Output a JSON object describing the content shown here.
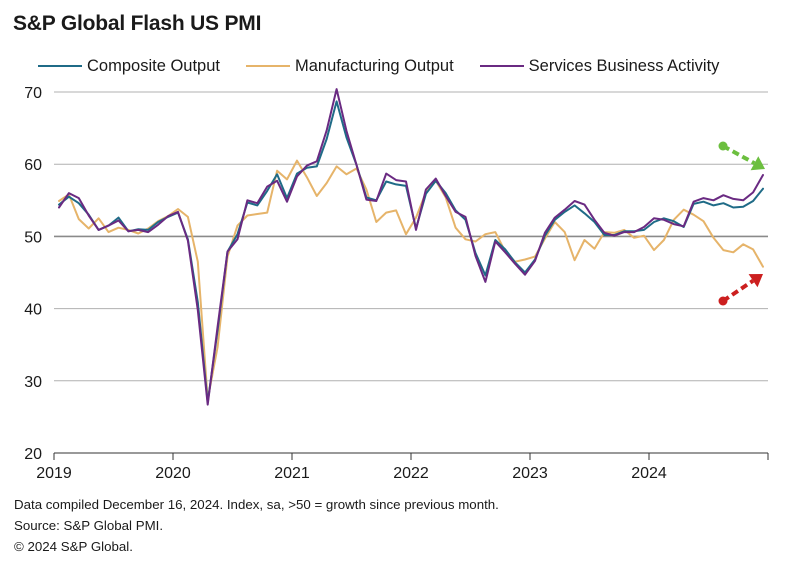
{
  "title": "S&P Global Flash US PMI",
  "footer": {
    "line1": "Data compiled December 16, 2024. Index, sa, >50 = growth since previous month.",
    "line2": "Source: S&P Global PMI.",
    "line3": "© 2024 S&P Global."
  },
  "colors": {
    "composite": "#1f6b87",
    "manufacturing": "#e6b46a",
    "services": "#6a2a82",
    "arrow_up_green": "#6cbf3f",
    "arrow_down_red": "#cc1f1f",
    "grid": "#9a9a9a"
  },
  "chart_data": {
    "type": "line",
    "title": "S&P Global Flash US PMI",
    "xlabel": "",
    "ylabel": "",
    "ylim": [
      20,
      70
    ],
    "yticks": [
      "20",
      "30",
      "40",
      "50",
      "60",
      "70"
    ],
    "xticks": [
      "2019",
      "2020",
      "2021",
      "2022",
      "2023",
      "2024"
    ],
    "x_range": [
      "2019-01",
      "2024-12"
    ],
    "grid": true,
    "legend_position": "top",
    "annotations": [
      "green-arrow-down-services",
      "red-arrow-up-manufacturing"
    ],
    "series": [
      {
        "name": "Composite Output",
        "values": [
          54.4,
          55.5,
          54.6,
          53.0,
          50.9,
          51.5,
          52.6,
          50.7,
          51.0,
          50.9,
          52.0,
          52.7,
          53.3,
          49.6,
          40.9,
          27.0,
          37.0,
          47.9,
          50.3,
          54.7,
          54.3,
          56.3,
          58.6,
          55.3,
          58.7,
          59.5,
          59.7,
          63.5,
          68.7,
          63.7,
          59.9,
          55.4,
          55.0,
          57.6,
          57.2,
          57.0,
          51.1,
          55.9,
          57.7,
          56.0,
          53.6,
          52.3,
          47.7,
          44.6,
          49.5,
          48.2,
          46.4,
          45.0,
          46.8,
          50.1,
          52.3,
          53.4,
          54.3,
          53.2,
          52.0,
          50.2,
          50.2,
          50.7,
          50.7,
          50.9,
          52.0,
          52.5,
          52.1,
          51.3,
          54.5,
          54.8,
          54.3,
          54.6,
          54.0,
          54.1,
          54.9,
          56.6
        ]
      },
      {
        "name": "Manufacturing Output",
        "values": [
          54.9,
          55.8,
          52.4,
          51.1,
          52.5,
          50.6,
          51.2,
          50.9,
          50.4,
          51.1,
          52.1,
          52.8,
          53.8,
          52.7,
          46.5,
          27.4,
          34.7,
          47.2,
          51.5,
          52.9,
          53.1,
          53.3,
          59.1,
          57.9,
          60.5,
          58.2,
          55.6,
          57.4,
          59.7,
          58.6,
          59.4,
          56.5,
          52.0,
          53.3,
          53.6,
          50.3,
          52.6,
          56.1,
          57.7,
          55.4,
          51.2,
          49.6,
          49.3,
          50.3,
          50.6,
          47.9,
          46.5,
          46.8,
          47.2,
          49.7,
          52.0,
          50.6,
          46.7,
          49.5,
          48.3,
          50.6,
          50.5,
          50.9,
          49.8,
          50.1,
          48.1,
          49.5,
          52.3,
          53.7,
          53.0,
          52.1,
          49.8,
          48.1,
          47.8,
          48.9,
          48.2,
          45.8
        ]
      },
      {
        "name": "Services Business Activity",
        "values": [
          54.0,
          56.0,
          55.3,
          52.9,
          50.9,
          51.5,
          52.2,
          50.7,
          50.9,
          50.6,
          51.6,
          52.8,
          53.4,
          49.4,
          39.8,
          26.7,
          37.5,
          47.9,
          49.6,
          55.0,
          54.6,
          56.9,
          57.7,
          54.8,
          58.3,
          59.8,
          60.4,
          64.7,
          70.4,
          64.6,
          59.9,
          55.1,
          54.9,
          58.7,
          57.8,
          57.6,
          50.9,
          56.5,
          58.0,
          55.6,
          53.4,
          52.7,
          47.3,
          43.7,
          49.3,
          47.8,
          46.2,
          44.7,
          46.6,
          50.5,
          52.6,
          53.7,
          54.9,
          54.4,
          52.3,
          50.5,
          50.1,
          50.6,
          50.6,
          51.3,
          52.5,
          52.3,
          51.7,
          51.4,
          54.8,
          55.3,
          55.0,
          55.7,
          55.2,
          55.0,
          56.1,
          58.5
        ]
      }
    ]
  }
}
